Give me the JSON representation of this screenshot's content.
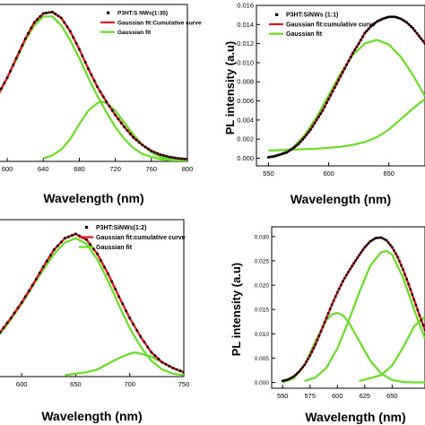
{
  "chart_data": [
    {
      "type": "line",
      "xlabel": "Wavelength (nm)",
      "ylabel": "",
      "xlim": [
        580,
        800
      ],
      "ylim": [
        0,
        1.05
      ],
      "xticks": [
        600,
        640,
        680,
        720,
        760,
        800
      ],
      "xtick_labels": [
        "600",
        "640",
        "680",
        "720",
        "760",
        "800"
      ],
      "yticks": [],
      "ytick_labels": [],
      "legend": [
        "P3HT:S NWs(1:35)",
        "Gaussian fit:Cumulative curve",
        "Gaussian fit"
      ],
      "legend_position": "top-right",
      "series": [
        {
          "name": "P3HT:S NWs(1:35)",
          "style": "markers",
          "color": "#000000",
          "x": [
            580,
            590,
            600,
            610,
            620,
            630,
            640,
            650,
            660,
            670,
            680,
            690,
            700,
            710,
            720,
            730,
            740,
            750,
            760,
            770,
            780,
            790,
            800
          ],
          "y": [
            0.36,
            0.45,
            0.56,
            0.69,
            0.82,
            0.93,
            0.99,
            1.0,
            0.96,
            0.87,
            0.75,
            0.62,
            0.5,
            0.4,
            0.31,
            0.23,
            0.16,
            0.11,
            0.07,
            0.045,
            0.03,
            0.02,
            0.015
          ]
        },
        {
          "name": "Gaussian fit:Cumulative curve",
          "style": "line",
          "color": "#e8141c",
          "x": [
            580,
            590,
            600,
            610,
            620,
            630,
            640,
            650,
            660,
            670,
            680,
            690,
            700,
            710,
            720,
            730,
            740,
            750,
            760,
            770,
            780,
            790,
            800
          ],
          "y": [
            0.36,
            0.45,
            0.56,
            0.69,
            0.82,
            0.93,
            0.99,
            1.0,
            0.96,
            0.87,
            0.75,
            0.62,
            0.5,
            0.4,
            0.31,
            0.23,
            0.16,
            0.11,
            0.07,
            0.045,
            0.03,
            0.02,
            0.015
          ]
        },
        {
          "name": "Gaussian fit",
          "style": "line",
          "color": "#66dd22",
          "x": [
            580,
            590,
            600,
            610,
            620,
            630,
            640,
            650,
            660,
            670,
            680,
            690,
            700,
            710,
            720,
            730,
            740,
            750,
            760,
            770,
            780,
            790,
            800
          ],
          "y": [
            0.34,
            0.44,
            0.56,
            0.68,
            0.81,
            0.91,
            0.97,
            0.97,
            0.91,
            0.81,
            0.69,
            0.56,
            0.44,
            0.33,
            0.23,
            0.15,
            0.09,
            0.05,
            0.03,
            0.015,
            0.008,
            0.003,
            0.0
          ]
        },
        {
          "name": "Gaussian fit",
          "style": "line",
          "color": "#66dd22",
          "x": [
            640,
            650,
            660,
            670,
            680,
            690,
            700,
            705,
            710,
            720,
            730,
            740,
            750,
            760,
            770,
            780,
            790,
            800
          ],
          "y": [
            0.02,
            0.04,
            0.08,
            0.15,
            0.25,
            0.34,
            0.39,
            0.4,
            0.39,
            0.34,
            0.26,
            0.18,
            0.11,
            0.06,
            0.03,
            0.015,
            0.007,
            0.003
          ]
        }
      ]
    },
    {
      "type": "line",
      "xlabel": "Wavelength (nm)",
      "ylabel": "PL intensity (a.u)",
      "xlim": [
        540,
        680
      ],
      "ylim": [
        -0.0008,
        0.016
      ],
      "xticks": [
        550,
        600,
        650
      ],
      "xtick_labels": [
        "550",
        "600",
        "650"
      ],
      "yticks": [
        0.0,
        0.002,
        0.004,
        0.006,
        0.008,
        0.01,
        0.012,
        0.014,
        0.016
      ],
      "ytick_labels": [
        "0.000",
        "0.002",
        "0.004",
        "0.006",
        "0.008",
        "0.010",
        "0.012",
        "0.014",
        "0.016"
      ],
      "legend": [
        "P3HT:SiNWs (1:1)",
        "Gaussian fit:cumulative curve",
        "Gaussian fit"
      ],
      "legend_position": "top-right",
      "series": [
        {
          "name": "P3HT:SiNWs (1:1)",
          "style": "markers",
          "color": "#000000",
          "x": [
            550,
            555,
            560,
            565,
            570,
            575,
            580,
            585,
            590,
            595,
            600,
            605,
            610,
            615,
            620,
            625,
            630,
            635,
            640,
            645,
            650,
            655,
            660,
            665,
            670,
            675,
            680
          ],
          "y": [
            0.0001,
            0.0002,
            0.0004,
            0.0006,
            0.001,
            0.0015,
            0.0022,
            0.003,
            0.004,
            0.005,
            0.0062,
            0.0074,
            0.0086,
            0.0098,
            0.011,
            0.012,
            0.0131,
            0.0138,
            0.0143,
            0.0146,
            0.0148,
            0.0148,
            0.0146,
            0.0142,
            0.0136,
            0.0128,
            0.012
          ]
        },
        {
          "name": "Gaussian fit:cumulative curve",
          "style": "line",
          "color": "#e8141c",
          "x": [
            550,
            555,
            560,
            565,
            570,
            575,
            580,
            585,
            590,
            595,
            600,
            605,
            610,
            615,
            620,
            625,
            630,
            635,
            640,
            645,
            650,
            655,
            660,
            665,
            670,
            675,
            680
          ],
          "y": [
            0.0001,
            0.0002,
            0.0004,
            0.0006,
            0.001,
            0.0015,
            0.0022,
            0.003,
            0.004,
            0.005,
            0.0062,
            0.0074,
            0.0086,
            0.0098,
            0.011,
            0.012,
            0.0131,
            0.0138,
            0.0143,
            0.0146,
            0.0148,
            0.0148,
            0.0146,
            0.0142,
            0.0136,
            0.0128,
            0.012
          ]
        },
        {
          "name": "Gaussian fit",
          "style": "line",
          "color": "#66dd22",
          "x": [
            550,
            560,
            570,
            580,
            590,
            600,
            610,
            620,
            630,
            640,
            650,
            660,
            670,
            680
          ],
          "y": [
            0.0001,
            0.0004,
            0.0011,
            0.0024,
            0.0043,
            0.0066,
            0.0089,
            0.0108,
            0.012,
            0.0124,
            0.0119,
            0.0106,
            0.0087,
            0.0065
          ]
        },
        {
          "name": "Gaussian fit",
          "style": "line",
          "color": "#66dd22",
          "x": [
            550,
            570,
            590,
            600,
            610,
            620,
            630,
            640,
            650,
            660,
            670,
            680
          ],
          "y": [
            0.0008,
            0.0009,
            0.001,
            0.0011,
            0.0012,
            0.0014,
            0.0017,
            0.0022,
            0.003,
            0.0041,
            0.0052,
            0.0062
          ]
        }
      ]
    },
    {
      "type": "line",
      "xlabel": "Wavelength (nm)",
      "ylabel": "",
      "xlim": [
        570,
        750
      ],
      "ylim": [
        0,
        1.1
      ],
      "xticks": [
        600,
        650,
        700,
        750
      ],
      "xtick_labels": [
        "600",
        "650",
        "700",
        "750"
      ],
      "yticks": [],
      "ytick_labels": [],
      "legend": [
        "P3HT:SiNWs(1:2)",
        "Gaussian fit:cumulative curve",
        "Gaussian fit"
      ],
      "legend_position": "top-right",
      "series": [
        {
          "name": "P3HT:SiNWs(1:2)",
          "style": "markers",
          "color": "#000000",
          "x": [
            570,
            580,
            590,
            600,
            610,
            620,
            630,
            640,
            650,
            660,
            670,
            680,
            690,
            700,
            710,
            720,
            730,
            740,
            750
          ],
          "y": [
            0.23,
            0.31,
            0.41,
            0.52,
            0.64,
            0.77,
            0.89,
            0.97,
            1.0,
            0.96,
            0.86,
            0.72,
            0.56,
            0.41,
            0.28,
            0.17,
            0.1,
            0.06,
            0.03
          ]
        },
        {
          "name": "Gaussian fit:cumulative curve",
          "style": "line",
          "color": "#e8141c",
          "x": [
            570,
            580,
            590,
            600,
            610,
            620,
            630,
            640,
            650,
            660,
            670,
            680,
            690,
            700,
            710,
            720,
            730,
            740,
            750
          ],
          "y": [
            0.23,
            0.31,
            0.41,
            0.52,
            0.64,
            0.77,
            0.89,
            0.97,
            1.0,
            0.96,
            0.86,
            0.72,
            0.56,
            0.41,
            0.28,
            0.17,
            0.1,
            0.06,
            0.03
          ]
        },
        {
          "name": "Gaussian fit",
          "style": "line",
          "color": "#66dd22",
          "x": [
            570,
            580,
            590,
            600,
            610,
            620,
            630,
            640,
            650,
            660,
            670,
            680,
            690,
            700,
            710,
            720,
            730,
            740,
            750
          ],
          "y": [
            0.22,
            0.3,
            0.4,
            0.51,
            0.63,
            0.75,
            0.86,
            0.94,
            0.97,
            0.93,
            0.82,
            0.67,
            0.5,
            0.34,
            0.21,
            0.11,
            0.05,
            0.02,
            0.01
          ]
        },
        {
          "name": "Gaussian fit",
          "style": "line",
          "color": "#66dd22",
          "x": [
            640,
            660,
            670,
            680,
            690,
            700,
            705,
            710,
            720,
            730,
            740,
            750
          ],
          "y": [
            0.01,
            0.03,
            0.05,
            0.09,
            0.13,
            0.16,
            0.17,
            0.16,
            0.14,
            0.1,
            0.06,
            0.03
          ]
        }
      ]
    },
    {
      "type": "line",
      "xlabel": "Wavelength (nm)",
      "ylabel": "PL intensity (a.u)",
      "xlim": [
        540,
        680
      ],
      "ylim": [
        -0.0012,
        0.032
      ],
      "xticks": [
        550,
        575,
        600,
        625,
        650
      ],
      "xtick_labels": [
        "550",
        "575",
        "600",
        "625",
        "650"
      ],
      "yticks": [
        0.0,
        0.005,
        0.01,
        0.015,
        0.02,
        0.025,
        0.03
      ],
      "ytick_labels": [
        "0.000",
        "0.005",
        "0.010",
        "0.015",
        "0.020",
        "0.025",
        "0.030"
      ],
      "legend": [],
      "legend_position": "",
      "series": [
        {
          "name": "",
          "style": "markers",
          "color": "#000000",
          "x": [
            550,
            555,
            560,
            565,
            570,
            575,
            580,
            585,
            590,
            595,
            600,
            605,
            610,
            615,
            620,
            625,
            630,
            635,
            640,
            645,
            650,
            655,
            660,
            665,
            670,
            675,
            680
          ],
          "y": [
            0.0003,
            0.0006,
            0.0012,
            0.0022,
            0.0036,
            0.0055,
            0.0078,
            0.0105,
            0.0133,
            0.016,
            0.0185,
            0.0208,
            0.0227,
            0.0245,
            0.0262,
            0.0278,
            0.029,
            0.0297,
            0.0298,
            0.0292,
            0.0278,
            0.0258,
            0.0232,
            0.0202,
            0.017,
            0.0138,
            0.0108
          ]
        },
        {
          "name": "",
          "style": "line",
          "color": "#e8141c",
          "x": [
            550,
            555,
            560,
            565,
            570,
            575,
            580,
            585,
            590,
            595,
            600,
            605,
            610,
            615,
            620,
            625,
            630,
            635,
            640,
            645,
            650,
            655,
            660,
            665,
            670,
            675,
            680
          ],
          "y": [
            0.0003,
            0.0006,
            0.0012,
            0.0022,
            0.0036,
            0.0055,
            0.0078,
            0.0105,
            0.0133,
            0.016,
            0.0185,
            0.0208,
            0.0227,
            0.0245,
            0.0262,
            0.0278,
            0.029,
            0.0297,
            0.0298,
            0.0292,
            0.0278,
            0.0258,
            0.0232,
            0.0202,
            0.017,
            0.0138,
            0.0108
          ]
        },
        {
          "name": "",
          "style": "line",
          "color": "#66dd22",
          "x": [
            550,
            560,
            570,
            580,
            590,
            595,
            600,
            605,
            610,
            620,
            630,
            640,
            650,
            660,
            670,
            680
          ],
          "y": [
            0.0,
            0.0008,
            0.0035,
            0.0085,
            0.0128,
            0.014,
            0.0143,
            0.0138,
            0.0125,
            0.0085,
            0.0045,
            0.0018,
            0.0005,
            0.0001,
            0.0,
            0.0
          ]
        },
        {
          "name": "",
          "style": "line",
          "color": "#66dd22",
          "x": [
            570,
            580,
            590,
            600,
            610,
            620,
            630,
            640,
            645,
            650,
            660,
            670,
            680
          ],
          "y": [
            0.0003,
            0.001,
            0.003,
            0.007,
            0.0125,
            0.0185,
            0.024,
            0.0268,
            0.027,
            0.0263,
            0.0215,
            0.015,
            0.009
          ]
        },
        {
          "name": "",
          "style": "line",
          "color": "#66dd22",
          "x": [
            620,
            640,
            650,
            660,
            670,
            680
          ],
          "y": [
            0.0003,
            0.0015,
            0.0035,
            0.0072,
            0.0115,
            0.0135
          ]
        }
      ]
    }
  ]
}
